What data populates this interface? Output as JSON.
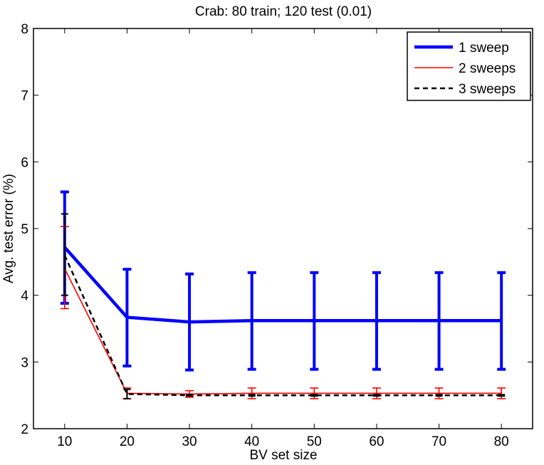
{
  "chart_data": {
    "type": "line",
    "title": "Crab: 80 train; 120 test (0.01)",
    "xlabel": "BV set size",
    "ylabel": "Avg. test error (%)",
    "xlim": [
      5,
      85
    ],
    "ylim": [
      2,
      8
    ],
    "xticks": [
      10,
      20,
      30,
      40,
      50,
      60,
      70,
      80
    ],
    "yticks": [
      2,
      3,
      4,
      5,
      6,
      7,
      8
    ],
    "grid": false,
    "legend_position": "top-right",
    "x": [
      10,
      20,
      30,
      40,
      50,
      60,
      70,
      80
    ],
    "series": [
      {
        "name": "1 sweep",
        "color": "#0000ff",
        "style": "solid-thick",
        "values": [
          4.72,
          3.67,
          3.6,
          3.62,
          3.62,
          3.62,
          3.62,
          3.62
        ],
        "err_low": [
          3.88,
          2.94,
          2.88,
          2.89,
          2.89,
          2.89,
          2.89,
          2.89
        ],
        "err_high": [
          5.55,
          4.39,
          4.32,
          4.34,
          4.34,
          4.34,
          4.34,
          4.34
        ]
      },
      {
        "name": "2 sweeps",
        "color": "#ff0000",
        "style": "solid-thin",
        "values": [
          4.4,
          2.53,
          2.52,
          2.53,
          2.53,
          2.53,
          2.53,
          2.53
        ],
        "err_low": [
          3.8,
          2.45,
          2.47,
          2.45,
          2.45,
          2.45,
          2.45,
          2.45
        ],
        "err_high": [
          5.03,
          2.61,
          2.57,
          2.61,
          2.61,
          2.61,
          2.61,
          2.61
        ]
      },
      {
        "name": "3 sweeps",
        "color": "#000000",
        "style": "dashed",
        "values": [
          4.6,
          2.52,
          2.5,
          2.5,
          2.5,
          2.5,
          2.5,
          2.5
        ],
        "err_low": [
          4.0,
          2.45,
          2.49,
          2.49,
          2.49,
          2.49,
          2.49,
          2.49
        ],
        "err_high": [
          5.22,
          2.59,
          2.51,
          2.51,
          2.51,
          2.51,
          2.51,
          2.51
        ]
      }
    ]
  }
}
